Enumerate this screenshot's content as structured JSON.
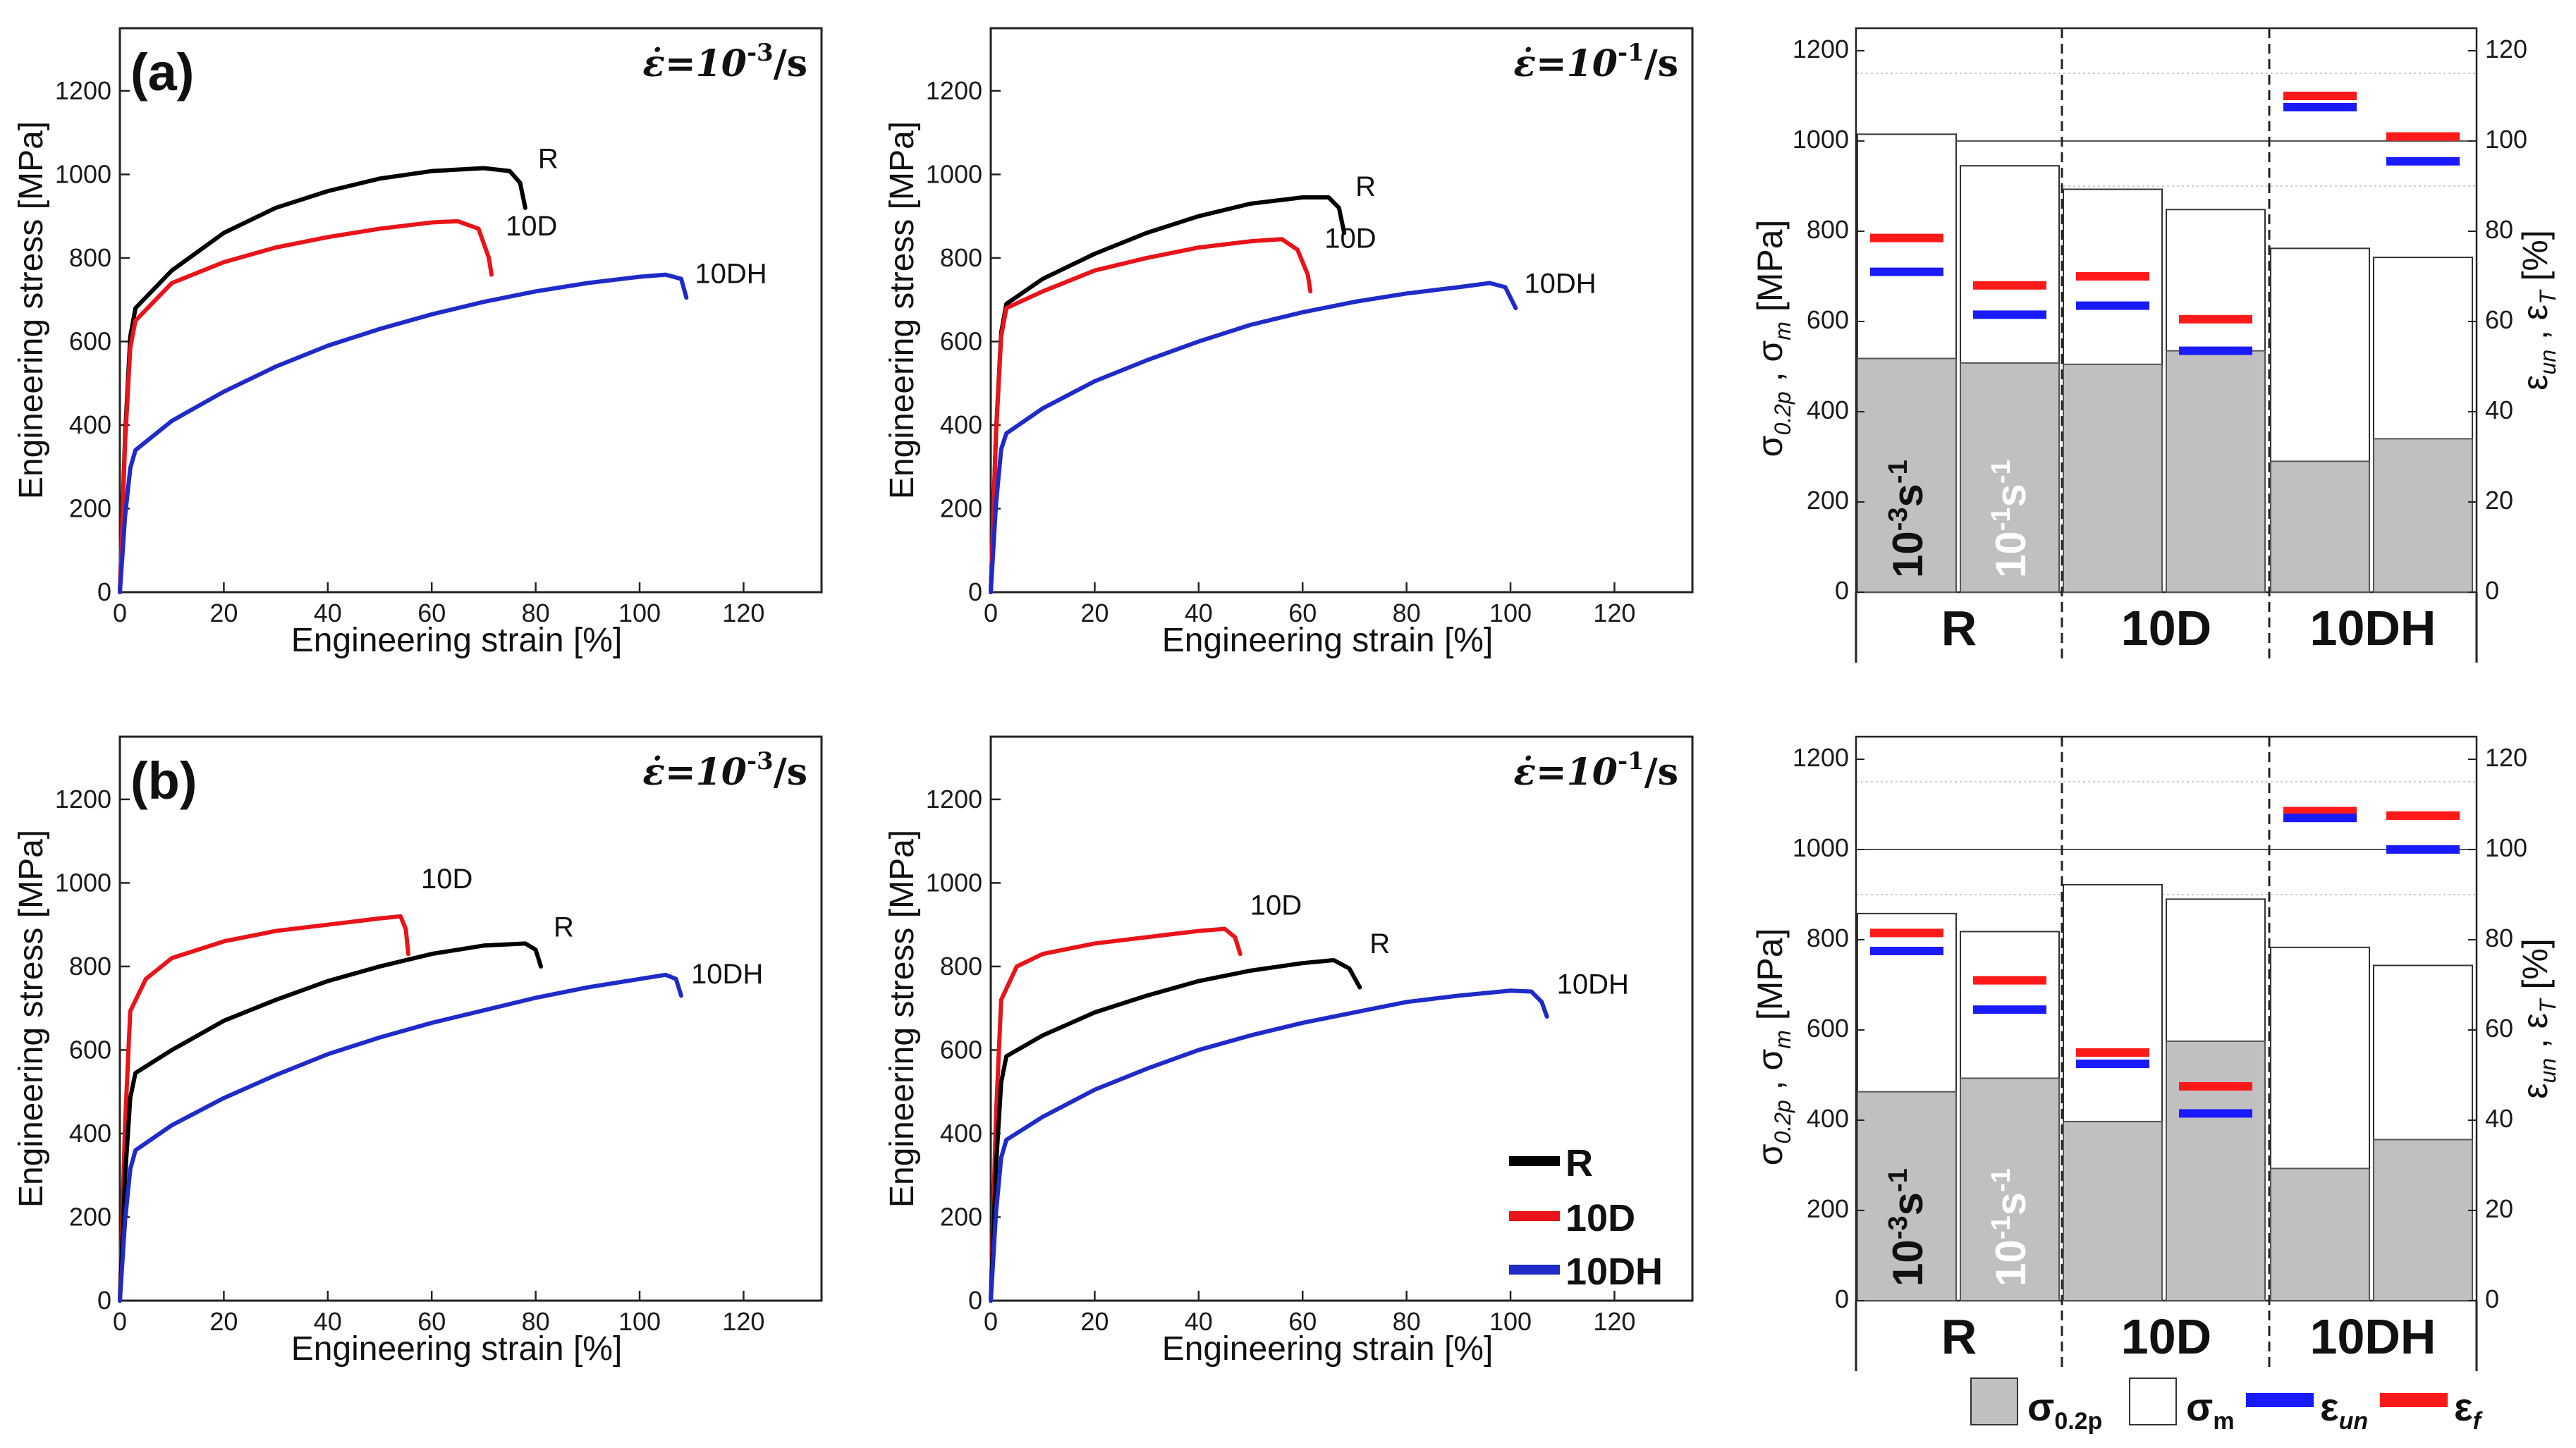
{
  "colors": {
    "R": "#000000",
    "10D": "#e8141a",
    "10DH": "#1f2bc8",
    "sigma02": "#c0c0c0",
    "sigmam": "#ffffff",
    "eps_un": "#1a1aff",
    "eps_f": "#ff1a1a"
  },
  "panel_labels": [
    "(a)",
    "(b)"
  ],
  "strain_axis": {
    "label": "Engineering strain [%]",
    "ticks": [
      "0",
      "20",
      "40",
      "60",
      "80",
      "100",
      "120"
    ]
  },
  "stress_axis": {
    "label": "Engineering stress [MPa]",
    "ticks": [
      "0",
      "200",
      "400",
      "600",
      "800",
      "1000",
      "1200"
    ]
  },
  "rates": {
    "slow": "ε̇=10",
    "slow_exp": "-3",
    "fast": "ε̇=10",
    "fast_exp": "-1",
    "unit": "/s"
  },
  "curve_labels": {
    "R": "R",
    "10D": "10D",
    "10DH": "10DH"
  },
  "legend": {
    "R": "R",
    "10D": "10D",
    "10DH": "10DH"
  },
  "bar_axes": {
    "left_ticks": [
      "0",
      "200",
      "400",
      "600",
      "800",
      "1000",
      "1200"
    ],
    "right_ticks": [
      "0",
      "20",
      "40",
      "60",
      "80",
      "100",
      "120"
    ],
    "left_sigma": "σ",
    "left_sub1": "0.2p",
    "left_sep": " , σ",
    "left_sub2": "m",
    "left_unit": " [MPa]",
    "right_eps": "ε",
    "right_sub1": "un",
    "right_sep": " , ε",
    "right_sub2": "T",
    "right_unit": " [%]"
  },
  "bar_groups": [
    "R",
    "10D",
    "10DH"
  ],
  "bar_rate_labels": {
    "slow": "10",
    "slow_exp": "-3",
    "fast": "10",
    "fast_exp": "-1",
    "unit_s": "s",
    "unit_exp": "-1"
  },
  "bar_legend": {
    "sigma02": "σ",
    "sigma02_sub": "0.2p",
    "sigmam": "σ",
    "sigmam_sub": "m",
    "eps_un": "ε",
    "eps_un_sub": "un",
    "eps_f": "ε",
    "eps_f_sub": "f"
  },
  "chart_data": [
    {
      "id": "a-slow",
      "type": "line",
      "panel": "(a)",
      "rate": "10^-3/s",
      "xlim": [
        0,
        135
      ],
      "ylim": [
        0,
        1350
      ],
      "xlabel": "Engineering strain [%]",
      "ylabel": "Engineering stress [MPa]",
      "series": [
        {
          "name": "R",
          "yield": 680,
          "points": [
            [
              3,
              680
            ],
            [
              10,
              770
            ],
            [
              20,
              860
            ],
            [
              30,
              920
            ],
            [
              40,
              960
            ],
            [
              50,
              990
            ],
            [
              60,
              1008
            ],
            [
              70,
              1015
            ],
            [
              75,
              1008
            ],
            [
              77,
              980
            ],
            [
              78,
              920
            ]
          ]
        },
        {
          "name": "10D",
          "yield": 650,
          "points": [
            [
              3,
              650
            ],
            [
              10,
              740
            ],
            [
              20,
              790
            ],
            [
              30,
              825
            ],
            [
              40,
              850
            ],
            [
              50,
              870
            ],
            [
              60,
              885
            ],
            [
              65,
              888
            ],
            [
              69,
              870
            ],
            [
              71,
              800
            ],
            [
              71.5,
              760
            ]
          ]
        },
        {
          "name": "10DH",
          "yield": 330,
          "points": [
            [
              3,
              340
            ],
            [
              10,
              410
            ],
            [
              20,
              480
            ],
            [
              30,
              540
            ],
            [
              40,
              590
            ],
            [
              50,
              630
            ],
            [
              60,
              665
            ],
            [
              70,
              695
            ],
            [
              80,
              720
            ],
            [
              90,
              740
            ],
            [
              100,
              755
            ],
            [
              105,
              760
            ],
            [
              108,
              750
            ],
            [
              109,
              705
            ]
          ]
        }
      ]
    },
    {
      "id": "a-fast",
      "type": "line",
      "panel": "(a)",
      "rate": "10^-1/s",
      "xlim": [
        0,
        135
      ],
      "ylim": [
        0,
        1350
      ],
      "xlabel": "Engineering strain [%]",
      "ylabel": "Engineering stress [MPa]",
      "series": [
        {
          "name": "R",
          "yield": 690,
          "points": [
            [
              3,
              690
            ],
            [
              10,
              750
            ],
            [
              20,
              810
            ],
            [
              30,
              860
            ],
            [
              40,
              900
            ],
            [
              50,
              930
            ],
            [
              60,
              945
            ],
            [
              65,
              945
            ],
            [
              67,
              920
            ],
            [
              68,
              860
            ]
          ]
        },
        {
          "name": "10D",
          "yield": 680,
          "points": [
            [
              3,
              680
            ],
            [
              10,
              720
            ],
            [
              20,
              770
            ],
            [
              30,
              800
            ],
            [
              40,
              825
            ],
            [
              50,
              840
            ],
            [
              56,
              845
            ],
            [
              59,
              820
            ],
            [
              61,
              760
            ],
            [
              61.5,
              720
            ]
          ]
        },
        {
          "name": "10DH",
          "yield": 380,
          "points": [
            [
              3,
              380
            ],
            [
              10,
              440
            ],
            [
              20,
              505
            ],
            [
              30,
              555
            ],
            [
              40,
              600
            ],
            [
              50,
              640
            ],
            [
              60,
              670
            ],
            [
              70,
              695
            ],
            [
              80,
              715
            ],
            [
              90,
              730
            ],
            [
              96,
              740
            ],
            [
              99,
              730
            ],
            [
              101,
              680
            ]
          ]
        }
      ]
    },
    {
      "id": "b-slow",
      "type": "line",
      "panel": "(b)",
      "rate": "10^-3/s",
      "xlim": [
        0,
        135
      ],
      "ylim": [
        0,
        1350
      ],
      "xlabel": "Engineering strain [%]",
      "ylabel": "Engineering stress [MPa]",
      "series": [
        {
          "name": "10D",
          "yield": 770,
          "points": [
            [
              5,
              770
            ],
            [
              10,
              820
            ],
            [
              20,
              860
            ],
            [
              30,
              885
            ],
            [
              40,
              900
            ],
            [
              50,
              915
            ],
            [
              54,
              920
            ],
            [
              55,
              890
            ],
            [
              55.5,
              830
            ]
          ]
        },
        {
          "name": "R",
          "yield": 540,
          "points": [
            [
              3,
              545
            ],
            [
              10,
              600
            ],
            [
              20,
              670
            ],
            [
              30,
              720
            ],
            [
              40,
              765
            ],
            [
              50,
              800
            ],
            [
              60,
              830
            ],
            [
              70,
              850
            ],
            [
              78,
              855
            ],
            [
              80,
              840
            ],
            [
              81,
              800
            ]
          ]
        },
        {
          "name": "10DH",
          "yield": 350,
          "points": [
            [
              3,
              360
            ],
            [
              10,
              420
            ],
            [
              20,
              485
            ],
            [
              30,
              540
            ],
            [
              40,
              590
            ],
            [
              50,
              630
            ],
            [
              60,
              665
            ],
            [
              70,
              695
            ],
            [
              80,
              725
            ],
            [
              90,
              750
            ],
            [
              100,
              770
            ],
            [
              105,
              780
            ],
            [
              107,
              770
            ],
            [
              108,
              730
            ]
          ]
        }
      ]
    },
    {
      "id": "b-fast",
      "type": "line",
      "panel": "(b)",
      "rate": "10^-1/s",
      "xlim": [
        0,
        135
      ],
      "ylim": [
        0,
        1350
      ],
      "xlabel": "Engineering strain [%]",
      "ylabel": "Engineering stress [MPa]",
      "series": [
        {
          "name": "10D",
          "yield": 800,
          "points": [
            [
              5,
              800
            ],
            [
              10,
              830
            ],
            [
              20,
              855
            ],
            [
              30,
              870
            ],
            [
              40,
              885
            ],
            [
              45,
              890
            ],
            [
              47,
              870
            ],
            [
              48,
              830
            ]
          ]
        },
        {
          "name": "R",
          "yield": 580,
          "points": [
            [
              3,
              585
            ],
            [
              10,
              635
            ],
            [
              20,
              690
            ],
            [
              30,
              730
            ],
            [
              40,
              765
            ],
            [
              50,
              790
            ],
            [
              60,
              808
            ],
            [
              66,
              815
            ],
            [
              69,
              795
            ],
            [
              71,
              750
            ]
          ]
        },
        {
          "name": "10DH",
          "yield": 380,
          "points": [
            [
              3,
              385
            ],
            [
              10,
              440
            ],
            [
              20,
              505
            ],
            [
              30,
              555
            ],
            [
              40,
              600
            ],
            [
              50,
              635
            ],
            [
              60,
              665
            ],
            [
              70,
              690
            ],
            [
              80,
              715
            ],
            [
              90,
              730
            ],
            [
              100,
              742
            ],
            [
              104,
              740
            ],
            [
              106,
              715
            ],
            [
              107,
              680
            ]
          ]
        }
      ]
    },
    {
      "id": "a-bars",
      "type": "bar",
      "panel": "(a)",
      "categories": [
        "R 10^-3",
        "R 10^-1",
        "10D 10^-3",
        "10D 10^-1",
        "10DH 10^-3",
        "10DH 10^-1"
      ],
      "ylim": [
        0,
        1250
      ],
      "y2lim": [
        0,
        125
      ],
      "series": [
        {
          "name": "σ0.2p",
          "values": [
            518,
            508,
            505,
            535,
            290,
            340
          ]
        },
        {
          "name": "σm",
          "values": [
            1015,
            945,
            893,
            848,
            762,
            742
          ]
        },
        {
          "name": "εun",
          "values": [
            71,
            61.5,
            63.5,
            53.5,
            107.5,
            95.5
          ]
        },
        {
          "name": "εf",
          "values": [
            78.5,
            68,
            70,
            60.5,
            110,
            101
          ]
        }
      ]
    },
    {
      "id": "b-bars",
      "type": "bar",
      "panel": "(b)",
      "categories": [
        "R 10^-3",
        "R 10^-1",
        "10D 10^-3",
        "10D 10^-1",
        "10DH 10^-3",
        "10DH 10^-1"
      ],
      "ylim": [
        0,
        1250
      ],
      "y2lim": [
        0,
        125
      ],
      "series": [
        {
          "name": "σ0.2p",
          "values": [
            463,
            493,
            397,
            575,
            293,
            357
          ]
        },
        {
          "name": "σm",
          "values": [
            858,
            818,
            922,
            890,
            783,
            743
          ]
        },
        {
          "name": "εun",
          "values": [
            77.5,
            64.5,
            52.5,
            41.5,
            107,
            100
          ]
        },
        {
          "name": "εf",
          "values": [
            81.5,
            71,
            55,
            47.5,
            108.5,
            107.5
          ]
        }
      ]
    }
  ]
}
